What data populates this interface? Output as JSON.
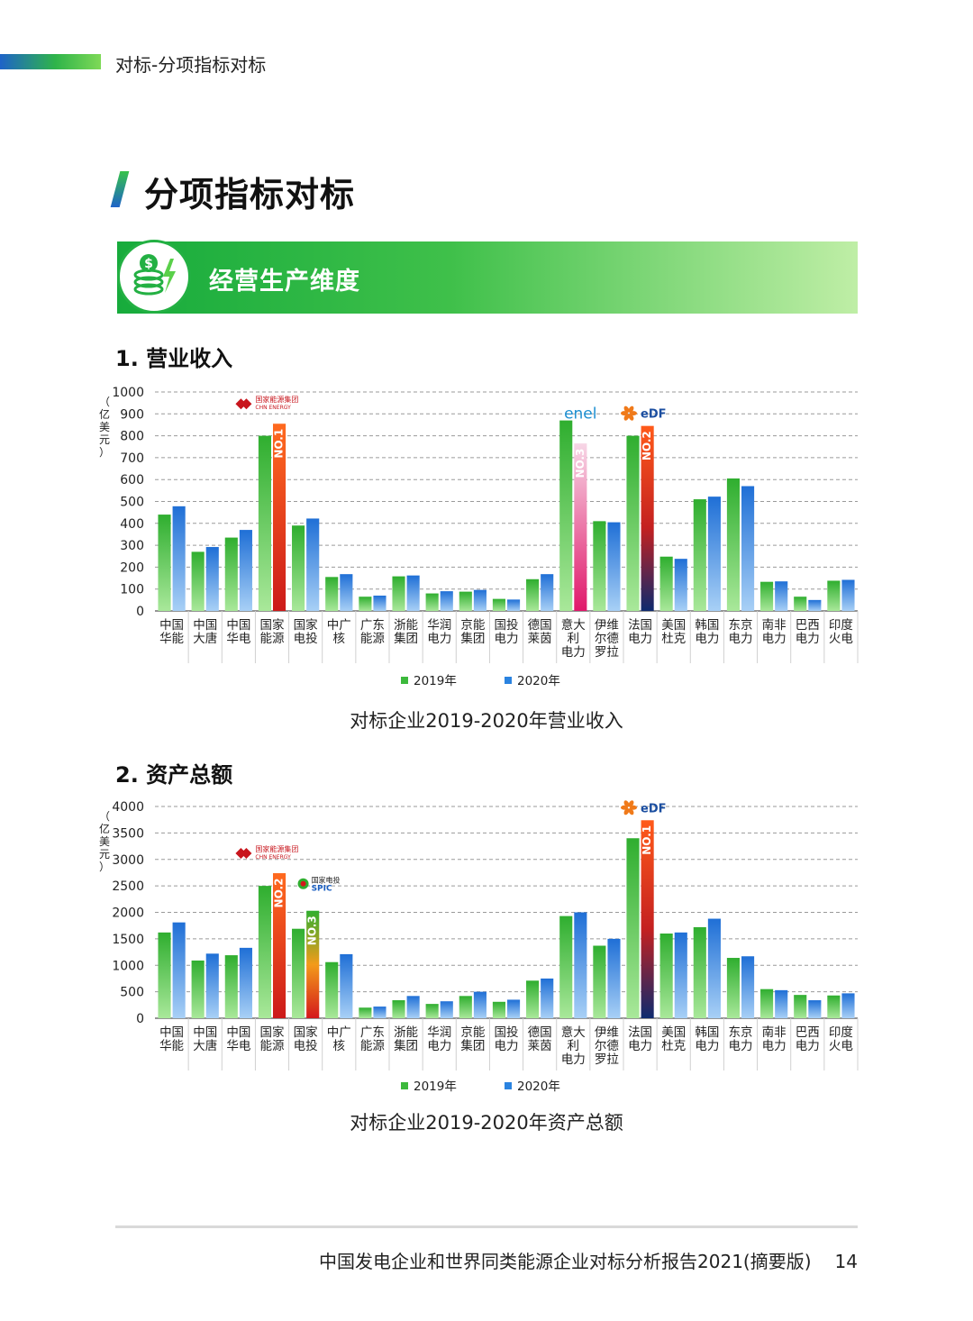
{
  "header": {
    "title": "对标-分项指标对标"
  },
  "section": {
    "title": "分项指标对标"
  },
  "banner": {
    "label": "经营生产维度",
    "icon": "money-coins-bolt-icon"
  },
  "colors": {
    "y2019": "#3cb93c",
    "y2020": "#2a83e0",
    "highlight_top": "#ff6a1f",
    "highlight_bottom": "#cc1a1a"
  },
  "logos": {
    "chn_energy_cn": "国家能源集团",
    "chn_energy_en": "CHN ENERGY",
    "enel": "enel",
    "edf": "eDF",
    "spic_cn": "国家电投",
    "spic_en": "SPIC"
  },
  "chart1": {
    "heading": "1. 营业收入",
    "caption": "对标企业2019-2020年营业收入"
  },
  "chart2": {
    "heading": "2. 资产总额",
    "caption": "对标企业2019-2020年资产总额"
  },
  "footer": {
    "text": "中国发电企业和世界同类能源企业对标分析报告2021(摘要版)",
    "page": "14"
  },
  "chart_data": [
    {
      "type": "bar",
      "ylabel": "（亿美元）",
      "ylim": [
        0,
        1000
      ],
      "yticks": [
        0,
        100,
        200,
        300,
        400,
        500,
        600,
        700,
        800,
        900,
        1000
      ],
      "categories": [
        [
          "中国",
          "华能"
        ],
        [
          "中国",
          "大唐"
        ],
        [
          "中国",
          "华电"
        ],
        [
          "国家",
          "能源"
        ],
        [
          "国家",
          "电投"
        ],
        [
          "中广",
          "核"
        ],
        [
          "广东",
          "能源"
        ],
        [
          "浙能",
          "集团"
        ],
        [
          "华润",
          "电力"
        ],
        [
          "京能",
          "集团"
        ],
        [
          "国投",
          "电力"
        ],
        [
          "德国",
          "莱茵"
        ],
        [
          "意大",
          "利",
          "电力"
        ],
        [
          "伊维",
          "尔德",
          "罗拉"
        ],
        [
          "法国",
          "电力"
        ],
        [
          "美国",
          "杜克"
        ],
        [
          "韩国",
          "电力"
        ],
        [
          "东京",
          "电力"
        ],
        [
          "南非",
          "电力"
        ],
        [
          "巴西",
          "电力"
        ],
        [
          "印度",
          "火电"
        ]
      ],
      "series": [
        {
          "name": "2019年",
          "values": [
            440,
            270,
            335,
            800,
            390,
            155,
            65,
            158,
            80,
            88,
            55,
            145,
            870,
            410,
            800,
            248,
            510,
            605,
            133,
            65,
            138
          ]
        },
        {
          "name": "2020年",
          "values": [
            478,
            292,
            370,
            855,
            422,
            168,
            70,
            162,
            90,
            96,
            52,
            168,
            765,
            405,
            845,
            238,
            522,
            570,
            135,
            50,
            142
          ]
        }
      ],
      "annotations": [
        {
          "category_index": 3,
          "series": "2020年",
          "label": "NO.1"
        },
        {
          "category_index": 12,
          "series": "2020年",
          "label": "NO.3"
        },
        {
          "category_index": 14,
          "series": "2020年",
          "label": "NO.2"
        }
      ],
      "grid": true,
      "legend": "bottom"
    },
    {
      "type": "bar",
      "ylabel": "（亿美元）",
      "ylim": [
        0,
        4000
      ],
      "yticks": [
        0,
        500,
        1000,
        1500,
        2000,
        2500,
        3000,
        3500,
        4000
      ],
      "categories": [
        [
          "中国",
          "华能"
        ],
        [
          "中国",
          "大唐"
        ],
        [
          "中国",
          "华电"
        ],
        [
          "国家",
          "能源"
        ],
        [
          "国家",
          "电投"
        ],
        [
          "中广",
          "核"
        ],
        [
          "广东",
          "能源"
        ],
        [
          "浙能",
          "集团"
        ],
        [
          "华润",
          "电力"
        ],
        [
          "京能",
          "集团"
        ],
        [
          "国投",
          "电力"
        ],
        [
          "德国",
          "莱茵"
        ],
        [
          "意大",
          "利",
          "电力"
        ],
        [
          "伊维",
          "尔德",
          "罗拉"
        ],
        [
          "法国",
          "电力"
        ],
        [
          "美国",
          "杜克"
        ],
        [
          "韩国",
          "电力"
        ],
        [
          "东京",
          "电力"
        ],
        [
          "南非",
          "电力"
        ],
        [
          "巴西",
          "电力"
        ],
        [
          "印度",
          "火电"
        ]
      ],
      "series": [
        {
          "name": "2019年",
          "values": [
            1620,
            1090,
            1190,
            2500,
            1690,
            1060,
            200,
            340,
            270,
            420,
            310,
            710,
            1930,
            1370,
            3400,
            1600,
            1720,
            1140,
            550,
            440,
            430
          ]
        },
        {
          "name": "2020年",
          "values": [
            1810,
            1220,
            1330,
            2740,
            2030,
            1210,
            220,
            420,
            320,
            500,
            350,
            750,
            2000,
            1500,
            3740,
            1620,
            1880,
            1170,
            530,
            340,
            470
          ]
        }
      ],
      "annotations": [
        {
          "category_index": 3,
          "series": "2020年",
          "label": "NO.2"
        },
        {
          "category_index": 4,
          "series": "2020年",
          "label": "NO.3"
        },
        {
          "category_index": 14,
          "series": "2020年",
          "label": "NO.1"
        }
      ],
      "grid": true,
      "legend": "bottom"
    }
  ]
}
